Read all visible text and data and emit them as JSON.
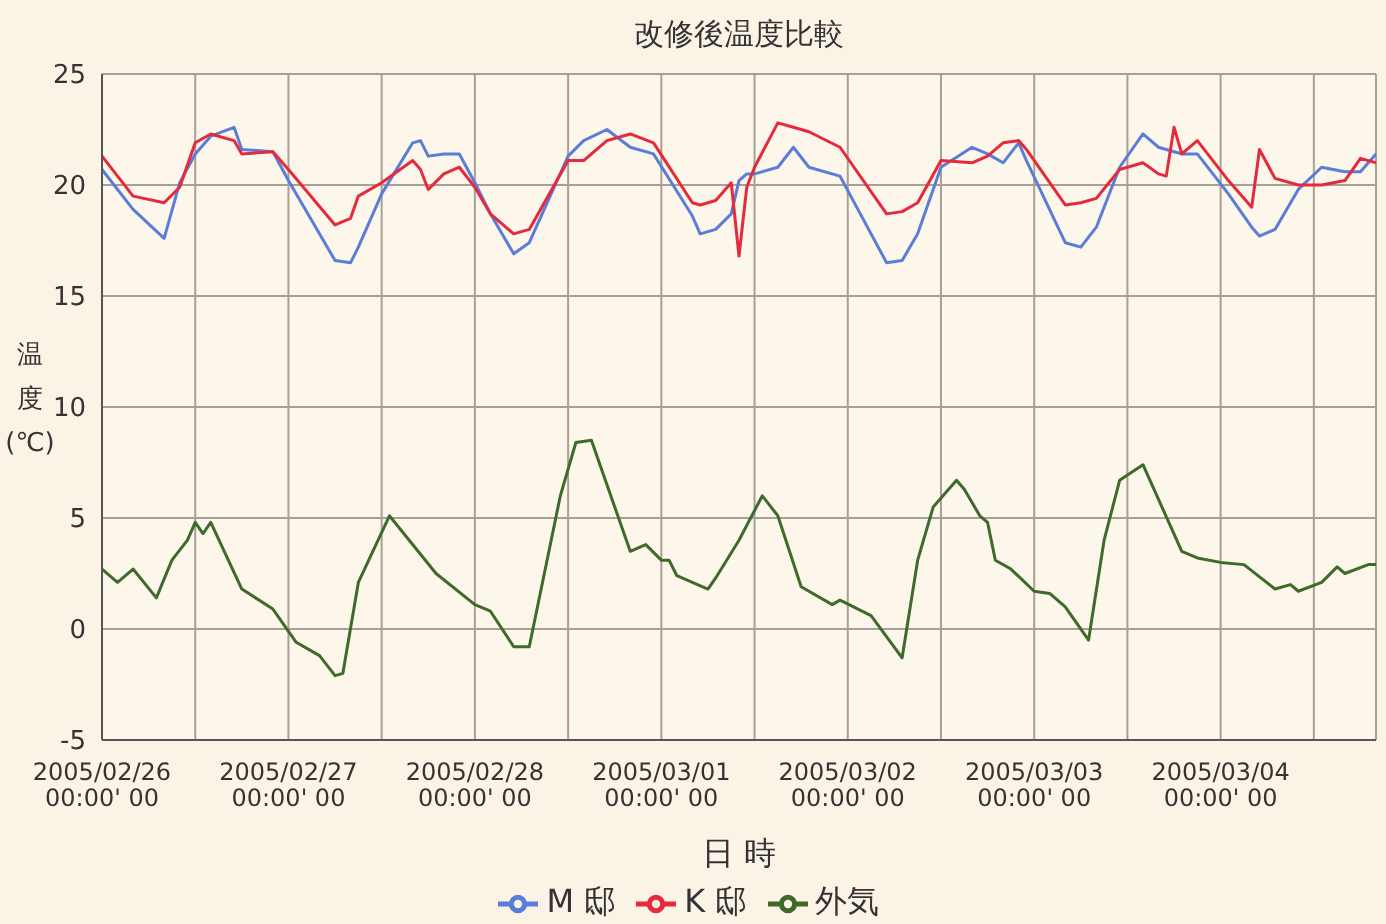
{
  "chart_data": {
    "type": "line",
    "title": "改修後温度比較",
    "xlabel": "日 時",
    "ylabel": "温度(℃)",
    "x": [
      "2005-02-26T00:00",
      "2005-02-26T04:00",
      "2005-02-26T08:00",
      "2005-02-26T10:00",
      "2005-02-26T12:00",
      "2005-02-26T14:00",
      "2005-02-26T17:00",
      "2005-02-26T18:00",
      "2005-02-26T22:00",
      "2005-02-27T00:00",
      "2005-02-27T06:00",
      "2005-02-27T08:00",
      "2005-02-27T09:00",
      "2005-02-27T12:00",
      "2005-02-27T16:00",
      "2005-02-27T17:00",
      "2005-02-27T18:00",
      "2005-02-27T20:00",
      "2005-02-27T22:00",
      "2005-02-28T00:00",
      "2005-02-28T02:00",
      "2005-02-28T05:00",
      "2005-02-28T07:00",
      "2005-02-28T12:00",
      "2005-02-28T14:00",
      "2005-02-28T17:00",
      "2005-02-28T20:00",
      "2005-02-28T23:00",
      "2005-03-01T04:00",
      "2005-03-01T05:00",
      "2005-03-01T07:00",
      "2005-03-01T09:00",
      "2005-03-01T10:00",
      "2005-03-01T11:00",
      "2005-03-01T12:00",
      "2005-03-01T15:00",
      "2005-03-01T17:00",
      "2005-03-01T19:00",
      "2005-03-01T23:00",
      "2005-03-02T05:00",
      "2005-03-02T07:00",
      "2005-03-02T09:00",
      "2005-03-02T12:00",
      "2005-03-02T16:00",
      "2005-03-02T18:00",
      "2005-03-02T20:00",
      "2005-03-02T22:00",
      "2005-03-02T23:00",
      "2005-03-03T04:00",
      "2005-03-03T06:00",
      "2005-03-03T08:00",
      "2005-03-03T11:00",
      "2005-03-03T14:00",
      "2005-03-03T16:00",
      "2005-03-03T17:00",
      "2005-03-03T18:00",
      "2005-03-03T19:00",
      "2005-03-03T21:00",
      "2005-03-04T01:00",
      "2005-03-04T04:00",
      "2005-03-04T05:00",
      "2005-03-04T07:00",
      "2005-03-04T10:00",
      "2005-03-04T13:00",
      "2005-03-04T16:00",
      "2005-03-04T18:00",
      "2005-03-04T20:00"
    ],
    "series": [
      {
        "name": "M 邸",
        "color": "#5a7ed8",
        "values": [
          20.7,
          18.9,
          17.6,
          20.1,
          21.4,
          22.2,
          22.6,
          21.6,
          21.5,
          20.2,
          16.6,
          16.5,
          17.2,
          19.6,
          21.9,
          22.0,
          21.3,
          21.4,
          21.4,
          20.1,
          18.7,
          16.9,
          17.4,
          21.3,
          22.0,
          22.5,
          21.7,
          21.4,
          18.6,
          17.8,
          18.0,
          18.7,
          20.2,
          20.5,
          20.5,
          20.8,
          21.7,
          20.8,
          20.4,
          16.5,
          16.6,
          17.8,
          20.8,
          21.7,
          21.4,
          21.0,
          21.9,
          21.1,
          17.4,
          17.2,
          18.1,
          20.8,
          22.3,
          21.7,
          21.6,
          21.5,
          21.4,
          21.4,
          19.6,
          18.1,
          17.7,
          18.0,
          19.8,
          20.8,
          20.6,
          20.6,
          21.4
        ]
      },
      {
        "name": "K 邸",
        "color": "#e42a3c",
        "values": [
          21.3,
          19.5,
          19.2,
          19.9,
          21.9,
          22.3,
          22.0,
          21.4,
          21.5,
          20.7,
          18.2,
          18.5,
          19.5,
          20.1,
          21.1,
          20.7,
          19.8,
          20.5,
          20.8,
          19.9,
          18.7,
          17.8,
          18.0,
          21.1,
          21.1,
          22.0,
          22.3,
          21.9,
          19.2,
          19.1,
          19.3,
          20.1,
          16.8,
          19.9,
          20.8,
          22.8,
          22.6,
          22.4,
          21.7,
          18.7,
          18.8,
          19.2,
          21.1,
          21.0,
          21.3,
          21.9,
          22.0,
          21.6,
          19.1,
          19.2,
          19.4,
          20.7,
          21.0,
          20.5,
          20.4,
          22.6,
          21.4,
          22.0,
          20.2,
          19.0,
          21.6,
          20.3,
          20.0,
          20.0,
          20.2,
          21.2,
          21.0
        ]
      },
      {
        "name": "外気",
        "color": "#3e6a2c",
        "x": [
          "2005-02-26T00:00",
          "2005-02-26T02:00",
          "2005-02-26T04:00",
          "2005-02-26T07:00",
          "2005-02-26T09:00",
          "2005-02-26T11:00",
          "2005-02-26T12:00",
          "2005-02-26T13:00",
          "2005-02-26T14:00",
          "2005-02-26T18:00",
          "2005-02-26T22:00",
          "2005-02-27T01:00",
          "2005-02-27T04:00",
          "2005-02-27T06:00",
          "2005-02-27T07:00",
          "2005-02-27T09:00",
          "2005-02-27T13:00",
          "2005-02-27T19:00",
          "2005-02-28T00:00",
          "2005-02-28T02:00",
          "2005-02-28T05:00",
          "2005-02-28T07:00",
          "2005-02-28T11:00",
          "2005-02-28T13:00",
          "2005-02-28T15:00",
          "2005-02-28T20:00",
          "2005-02-28T22:00",
          "2005-03-01T00:00",
          "2005-03-01T01:00",
          "2005-03-01T02:00",
          "2005-03-01T06:00",
          "2005-03-01T07:00",
          "2005-03-01T10:00",
          "2005-03-01T13:00",
          "2005-03-01T15:00",
          "2005-03-01T18:00",
          "2005-03-01T22:00",
          "2005-03-01T23:00",
          "2005-03-02T03:00",
          "2005-03-02T07:00",
          "2005-03-02T09:00",
          "2005-03-02T11:00",
          "2005-03-02T14:00",
          "2005-03-02T15:00",
          "2005-03-02T17:00",
          "2005-03-02T18:00",
          "2005-03-02T19:00",
          "2005-03-02T21:00",
          "2005-03-03T00:00",
          "2005-03-03T02:00",
          "2005-03-03T04:00",
          "2005-03-03T07:00",
          "2005-03-03T09:00",
          "2005-03-03T11:00",
          "2005-03-03T14:00",
          "2005-03-03T19:00",
          "2005-03-03T21:00",
          "2005-03-04T00:00",
          "2005-03-04T03:00",
          "2005-03-04T07:00",
          "2005-03-04T09:00",
          "2005-03-04T10:00",
          "2005-03-04T13:00",
          "2005-03-04T15:00",
          "2005-03-04T16:00",
          "2005-03-04T19:00",
          "2005-03-04T20:00"
        ],
        "values": [
          2.7,
          2.1,
          2.7,
          1.4,
          3.1,
          4.0,
          4.8,
          4.3,
          4.8,
          1.8,
          0.9,
          -0.6,
          -1.2,
          -2.1,
          -2.0,
          2.1,
          5.1,
          2.5,
          1.1,
          0.8,
          -0.8,
          -0.8,
          6.0,
          8.4,
          8.5,
          3.5,
          3.8,
          3.1,
          3.1,
          2.4,
          1.8,
          2.3,
          4.0,
          6.0,
          5.1,
          1.9,
          1.1,
          1.3,
          0.6,
          -1.3,
          3.1,
          5.5,
          6.7,
          6.3,
          5.1,
          4.8,
          3.1,
          2.7,
          1.7,
          1.6,
          1.0,
          -0.5,
          4.0,
          6.7,
          7.4,
          3.5,
          3.2,
          3.0,
          2.9,
          1.8,
          2.0,
          1.7,
          2.1,
          2.8,
          2.5,
          2.9,
          2.9
        ]
      }
    ],
    "xlim": [
      "2005-02-26T00:00",
      "2005-03-04T20:00"
    ],
    "xticks": [
      {
        "value": "2005-02-26T00:00",
        "label": "2005/02/26\n00:00' 00"
      },
      {
        "value": "2005-02-26T12:00",
        "label": null
      },
      {
        "value": "2005-02-27T00:00",
        "label": "2005/02/27\n00:00' 00"
      },
      {
        "value": "2005-02-27T12:00",
        "label": null
      },
      {
        "value": "2005-02-28T00:00",
        "label": "2005/02/28\n00:00' 00"
      },
      {
        "value": "2005-02-28T12:00",
        "label": null
      },
      {
        "value": "2005-03-01T00:00",
        "label": "2005/03/01\n00:00' 00"
      },
      {
        "value": "2005-03-01T12:00",
        "label": null
      },
      {
        "value": "2005-03-02T00:00",
        "label": "2005/03/02\n00:00' 00"
      },
      {
        "value": "2005-03-02T12:00",
        "label": null
      },
      {
        "value": "2005-03-03T00:00",
        "label": "2005/03/03\n00:00' 00"
      },
      {
        "value": "2005-03-03T12:00",
        "label": null
      },
      {
        "value": "2005-03-04T00:00",
        "label": "2005/03/04\n00:00' 00"
      },
      {
        "value": "2005-03-04T12:00",
        "label": null
      }
    ],
    "ylim": [
      -5,
      25
    ],
    "yticks": [
      -5,
      0,
      5,
      10,
      15,
      20,
      25
    ],
    "grid": true,
    "legend": "bottom",
    "marker": "none",
    "line_style": "solid"
  }
}
